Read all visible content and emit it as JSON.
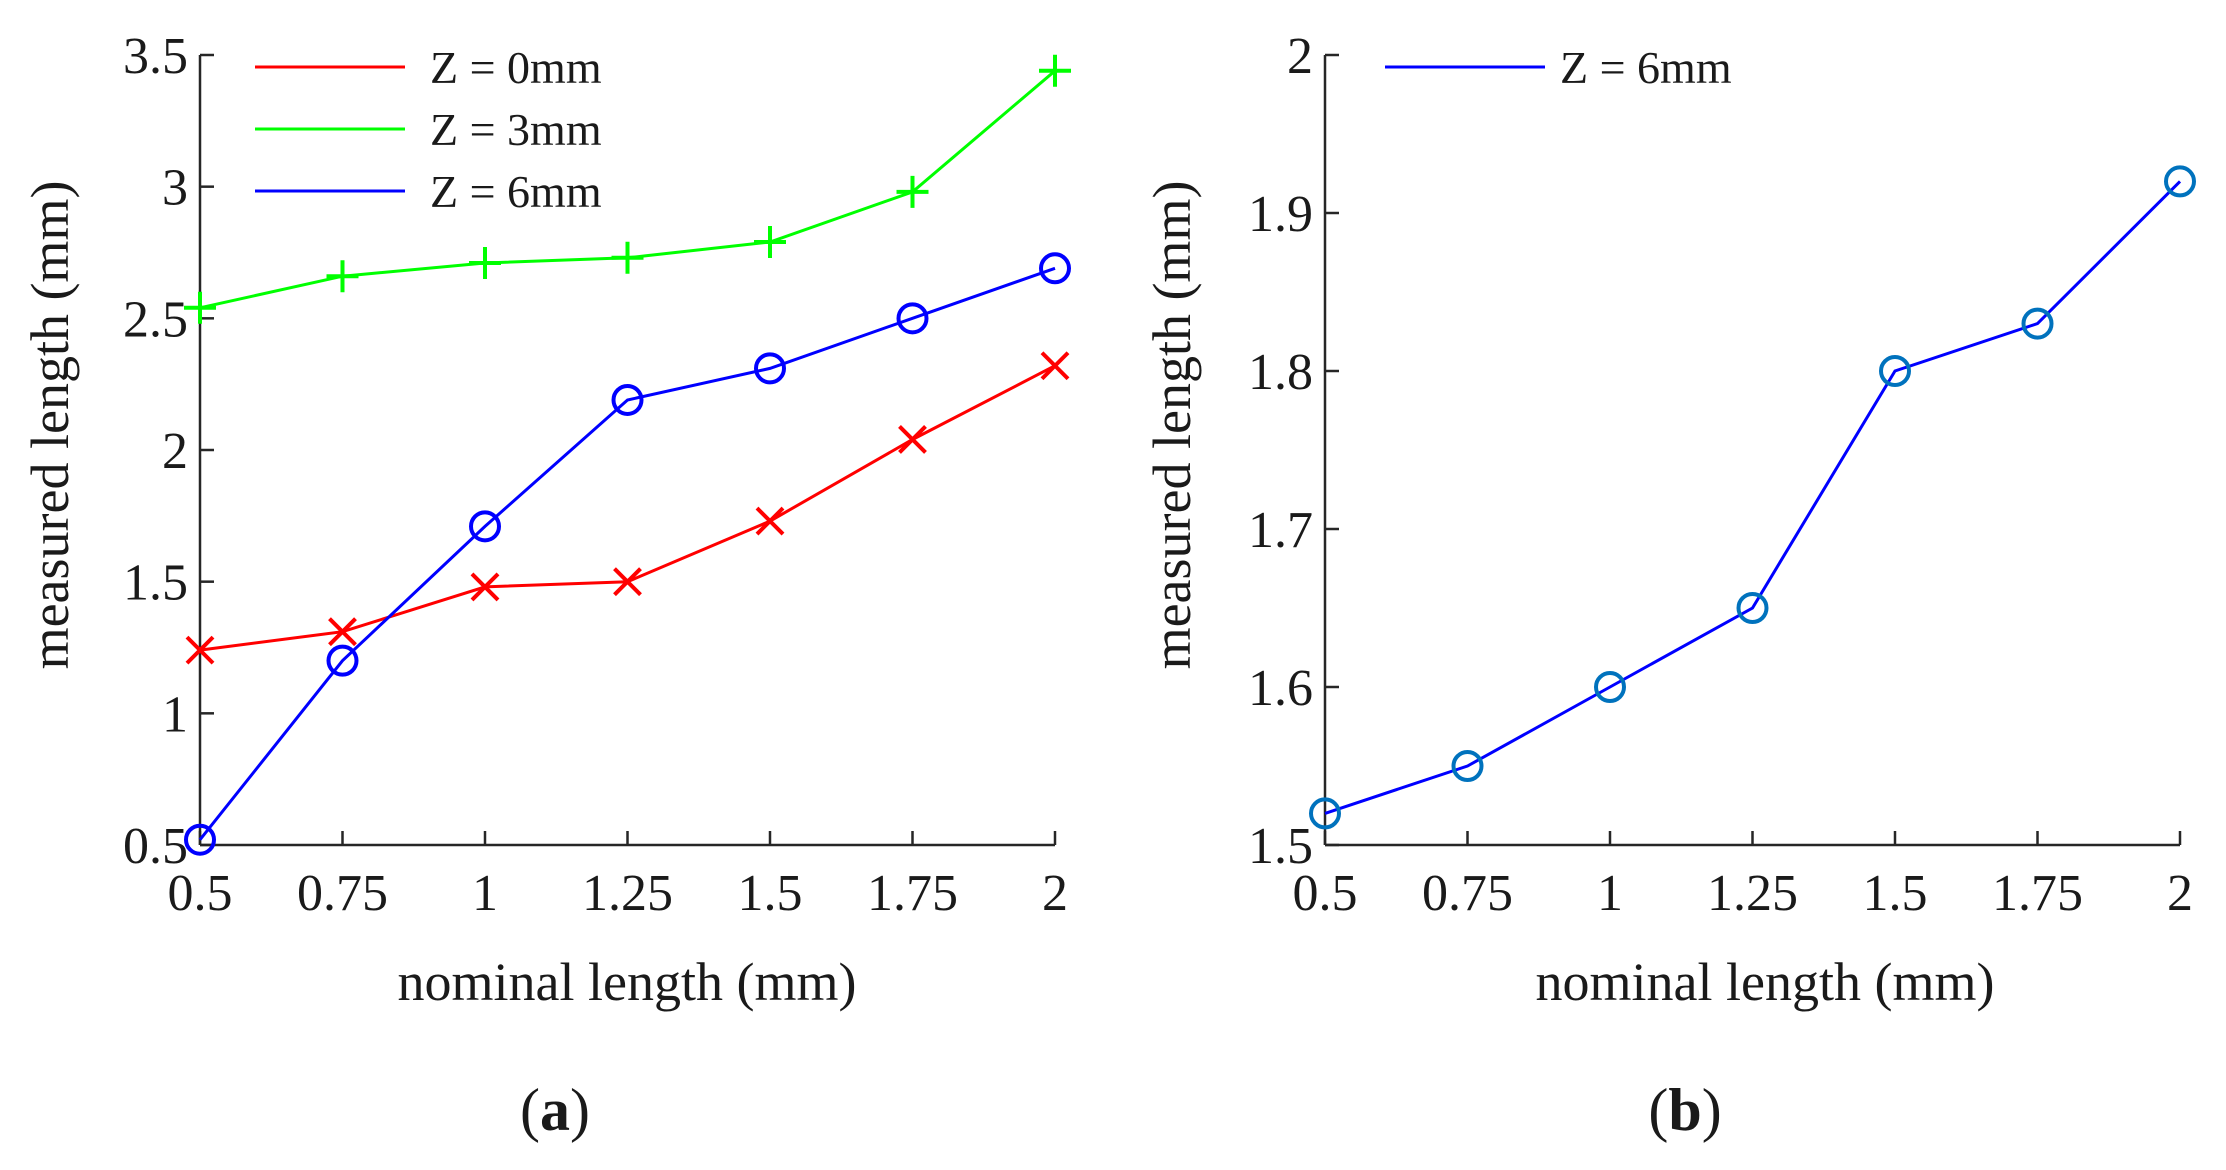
{
  "chart_data": [
    {
      "type": "line",
      "panel_label": "a",
      "xlabel": "nominal length (mm)",
      "ylabel": "measured length (mm)",
      "x": [
        0.5,
        0.75,
        1,
        1.25,
        1.5,
        1.75,
        2
      ],
      "x_ticks": [
        0.5,
        0.75,
        1,
        1.25,
        1.5,
        1.75,
        2
      ],
      "x_tick_labels": [
        "0.5",
        "0.75",
        "1",
        "1.25",
        "1.5",
        "1.75",
        "2"
      ],
      "y_ticks": [
        0.5,
        1,
        1.5,
        2,
        2.5,
        3,
        3.5
      ],
      "y_tick_labels": [
        "0.5",
        "1",
        "1.5",
        "2",
        "2.5",
        "3",
        "3.5"
      ],
      "xlim": [
        0.5,
        2
      ],
      "ylim": [
        0.5,
        3.5
      ],
      "legend_position": "top-left",
      "series": [
        {
          "name": "Z = 0mm",
          "color": "#ff0000",
          "marker": "x",
          "values": [
            1.24,
            1.31,
            1.48,
            1.5,
            1.73,
            2.04,
            2.32
          ]
        },
        {
          "name": "Z = 3mm",
          "color": "#00ff00",
          "marker": "+",
          "values": [
            2.54,
            2.66,
            2.71,
            2.73,
            2.79,
            2.98,
            3.44
          ]
        },
        {
          "name": "Z = 6mm",
          "color": "#0000ff",
          "marker": "o",
          "values": [
            0.52,
            1.2,
            1.71,
            2.19,
            2.31,
            2.5,
            2.69
          ]
        }
      ]
    },
    {
      "type": "line",
      "panel_label": "b",
      "xlabel": "nominal length (mm)",
      "ylabel": "measured length (mm)",
      "x": [
        0.5,
        0.75,
        1,
        1.25,
        1.5,
        1.75,
        2
      ],
      "x_ticks": [
        0.5,
        0.75,
        1,
        1.25,
        1.5,
        1.75,
        2
      ],
      "x_tick_labels": [
        "0.5",
        "0.75",
        "1",
        "1.25",
        "1.5",
        "1.75",
        "2"
      ],
      "y_ticks": [
        1.5,
        1.6,
        1.7,
        1.8,
        1.9,
        2
      ],
      "y_tick_labels": [
        "1.5",
        "1.6",
        "1.7",
        "1.8",
        "1.9",
        "2"
      ],
      "xlim": [
        0.5,
        2
      ],
      "ylim": [
        1.5,
        2
      ],
      "legend_position": "top-left",
      "series": [
        {
          "name": "Z = 6mm",
          "color": "#0000ff",
          "marker_color": "#0072bd",
          "marker": "o",
          "values": [
            1.52,
            1.55,
            1.6,
            1.65,
            1.8,
            1.83,
            1.92
          ]
        }
      ]
    }
  ]
}
